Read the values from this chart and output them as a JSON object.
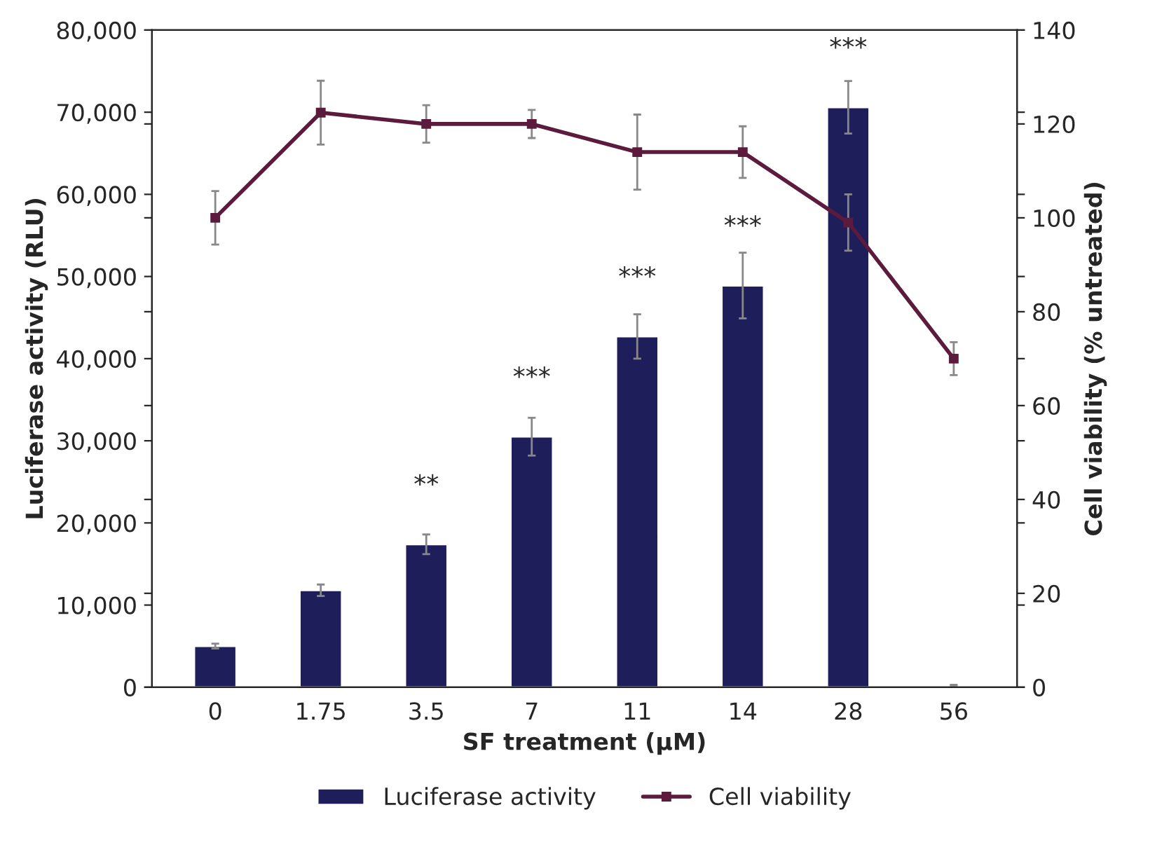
{
  "chart_data": {
    "type": "bar",
    "xlabel": "SF treatment (µM)",
    "ylabel": "Luciferase activity (RLU)",
    "y2label": "Cell viability (% untreated)",
    "categories": [
      "0",
      "1.75",
      "3.5",
      "7",
      "11",
      "14",
      "28",
      "56"
    ],
    "series": [
      {
        "name": "Luciferase activity",
        "color": "#1e1e5a",
        "values": [
          5000,
          11800,
          17400,
          30500,
          42700,
          48900,
          70600,
          200
        ],
        "errors": [
          300,
          700,
          1200,
          2300,
          2700,
          4000,
          3200,
          100
        ]
      },
      {
        "name": "Cell viability",
        "type": "line",
        "axis": "y2",
        "color": "#5c1a3c",
        "marker": "square",
        "values": [
          100,
          122.4,
          120,
          120,
          114,
          114,
          99,
          70
        ],
        "errors": [
          5.7,
          6.8,
          4,
          3,
          8,
          5.5,
          6,
          3.5
        ]
      }
    ],
    "ylim": [
      0,
      80000
    ],
    "yticks": [
      {
        "value": 0,
        "label": "0"
      },
      {
        "value": 10000,
        "label": "10,000"
      },
      {
        "value": 20000,
        "label": "20,000"
      },
      {
        "value": 30000,
        "label": "30,000"
      },
      {
        "value": 40000,
        "label": "40,000"
      },
      {
        "value": 50000,
        "label": "50,000"
      },
      {
        "value": 60000,
        "label": "60,000"
      },
      {
        "value": 70000,
        "label": "70,000"
      },
      {
        "value": 80000,
        "label": "80,000"
      }
    ],
    "y2lim": [
      0,
      140
    ],
    "y2ticks": [
      0,
      20,
      40,
      60,
      80,
      100,
      120,
      140
    ],
    "annotations": [
      {
        "text": "**",
        "x": "3.5",
        "y": 17400
      },
      {
        "text": "***",
        "x": "7",
        "y": 30500
      },
      {
        "text": "***",
        "x": "11",
        "y": 42700
      },
      {
        "text": "***",
        "x": "14",
        "y": 48900
      },
      {
        "text": "***",
        "x": "28",
        "y": 70600
      }
    ],
    "legend": "bottom",
    "grid": false
  }
}
